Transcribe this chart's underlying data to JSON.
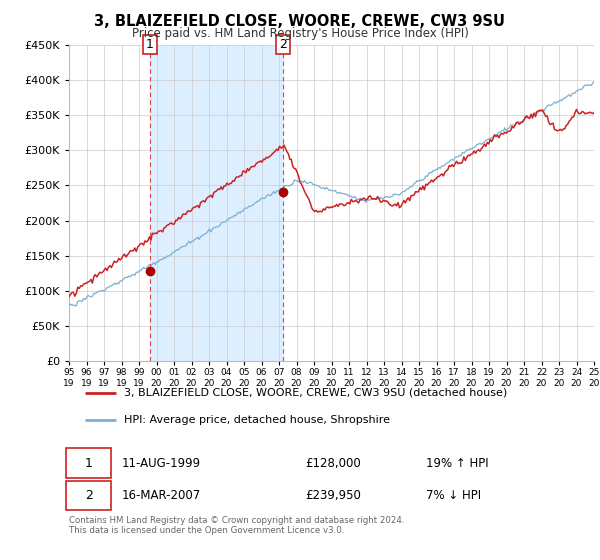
{
  "title": "3, BLAIZEFIELD CLOSE, WOORE, CREWE, CW3 9SU",
  "subtitle": "Price paid vs. HM Land Registry's House Price Index (HPI)",
  "ylim": [
    0,
    450000
  ],
  "yticks": [
    0,
    50000,
    100000,
    150000,
    200000,
    250000,
    300000,
    350000,
    400000,
    450000
  ],
  "ytick_labels": [
    "£0",
    "£50K",
    "£100K",
    "£150K",
    "£200K",
    "£250K",
    "£300K",
    "£350K",
    "£400K",
    "£450K"
  ],
  "xlim_start": 1995,
  "xlim_end": 2025,
  "hpi_color": "#7bafd4",
  "price_color": "#cc2222",
  "marker_color": "#aa0000",
  "bg_color": "#ffffff",
  "grid_color": "#cccccc",
  "shade_color": "#ddeeff",
  "vline_color": "#dd4444",
  "transaction1_year": 1999.62,
  "transaction1_price": 128000,
  "transaction2_year": 2007.21,
  "transaction2_price": 239950,
  "legend_line1": "3, BLAIZEFIELD CLOSE, WOORE, CREWE, CW3 9SU (detached house)",
  "legend_line2": "HPI: Average price, detached house, Shropshire",
  "footer_line1": "Contains HM Land Registry data © Crown copyright and database right 2024.",
  "footer_line2": "This data is licensed under the Open Government Licence v3.0.",
  "table_row1_date": "11-AUG-1999",
  "table_row1_price": "£128,000",
  "table_row1_hpi": "19% ↑ HPI",
  "table_row2_date": "16-MAR-2007",
  "table_row2_price": "£239,950",
  "table_row2_hpi": "7% ↓ HPI"
}
